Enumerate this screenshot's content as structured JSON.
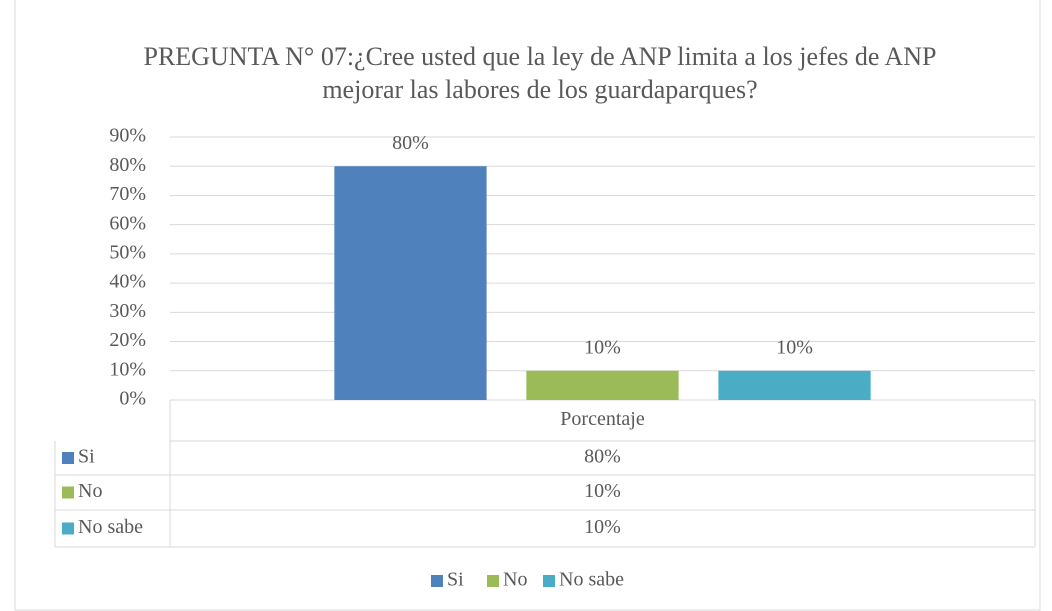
{
  "chart_data": {
    "type": "bar",
    "title": "PREGUNTA N° 07:¿Cree usted que la ley de ANP limita a los jefes de ANP mejorar las labores de los guardaparques?",
    "categories": [
      "Porcentaje"
    ],
    "series": [
      {
        "name": "Si",
        "color": "#4f81bd",
        "values": [
          80
        ],
        "value_labels": [
          "80%"
        ]
      },
      {
        "name": "No",
        "color": "#9bbb59",
        "values": [
          10
        ],
        "value_labels": [
          "10%"
        ]
      },
      {
        "name": "No sabe",
        "color": "#4bacc6",
        "values": [
          10
        ],
        "value_labels": [
          "10%"
        ]
      }
    ],
    "ylim": [
      0,
      90
    ],
    "yticks": [
      {
        "value": 0,
        "label": "0%"
      },
      {
        "value": 10,
        "label": "10%"
      },
      {
        "value": 20,
        "label": "20%"
      },
      {
        "value": 30,
        "label": "30%"
      },
      {
        "value": 40,
        "label": "40%"
      },
      {
        "value": 50,
        "label": "50%"
      },
      {
        "value": 60,
        "label": "60%"
      },
      {
        "value": 70,
        "label": "70%"
      },
      {
        "value": 80,
        "label": "80%"
      },
      {
        "value": 90,
        "label": "90%"
      }
    ],
    "grid": true,
    "legend": "bottom"
  }
}
